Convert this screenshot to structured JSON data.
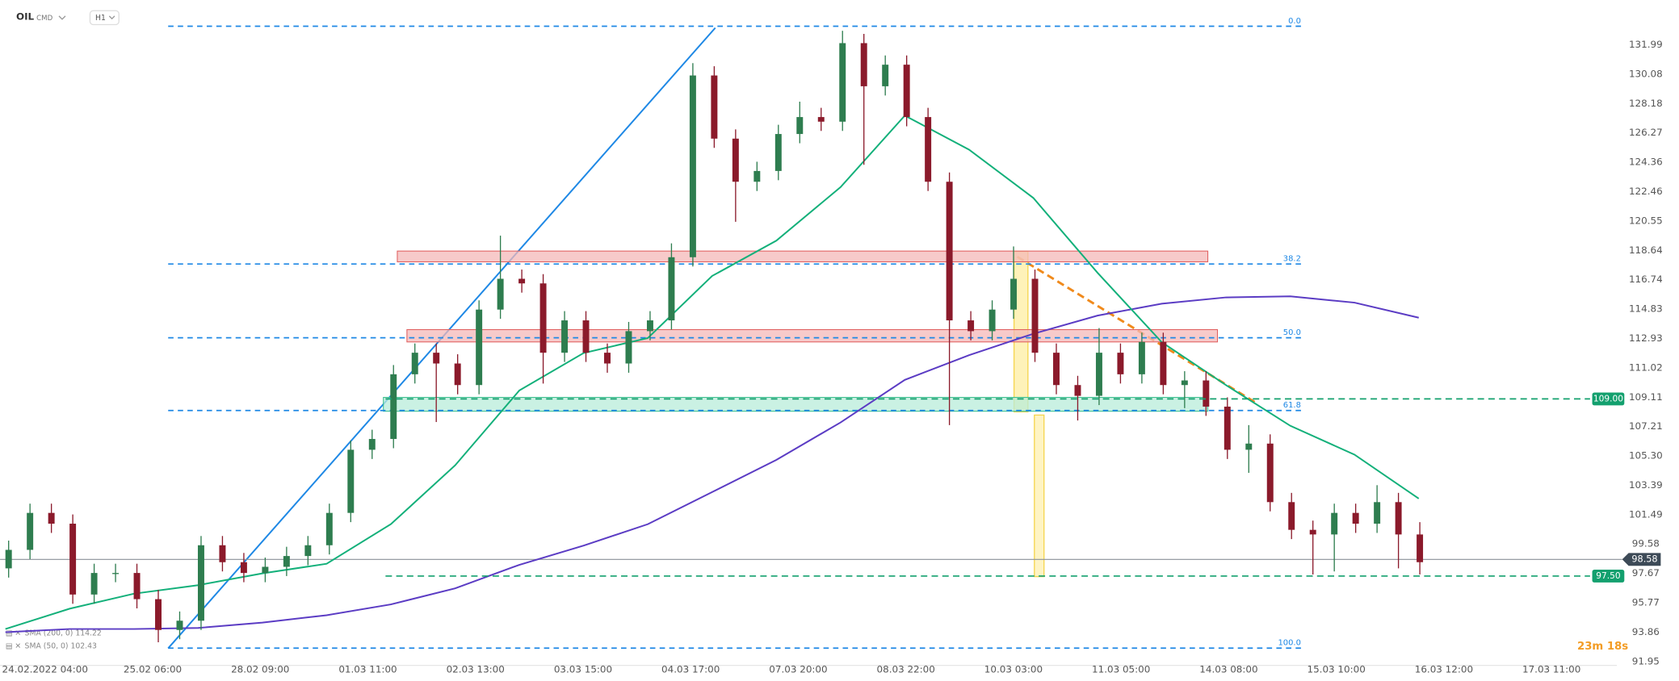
{
  "chart_data": {
    "type": "candlestick",
    "symbol": "OIL",
    "market": "CMD",
    "interval": "H1",
    "timer": "23m 18s",
    "ylim": [
      91.7,
      134.9
    ],
    "yticks": [
      131.99,
      130.08,
      128.18,
      126.27,
      124.36,
      122.46,
      120.55,
      118.64,
      116.74,
      114.83,
      112.93,
      111.02,
      109.11,
      107.21,
      {
        "value": 105.3,
        "label": "105.30"
      },
      103.39,
      101.49,
      99.58,
      97.67,
      95.77,
      93.86,
      91.95
    ],
    "x_labels": [
      "24.02.2022 04:00",
      "25.02 06:00",
      "28.02 09:00",
      "01.03 11:00",
      "02.03 13:00",
      "03.03 15:00",
      "04.03 17:00",
      "07.03 20:00",
      "08.03 22:00",
      "10.03 03:00",
      "11.03 05:00",
      "14.03 08:00",
      "15.03 10:00",
      "16.03 12:00",
      "17.03 11:00"
    ],
    "up_color": "#2e7d4f",
    "down_color": "#8b1a2b",
    "open": [
      98.0,
      99.2,
      101.6,
      100.9,
      96.3,
      97.7,
      97.7,
      96.0,
      94.0,
      94.6,
      99.5,
      98.4,
      97.7,
      98.1,
      98.8,
      99.5,
      101.6,
      105.7,
      106.4,
      110.6,
      112.0,
      111.3,
      109.9,
      114.8,
      116.8,
      116.5,
      112.0,
      114.1,
      112.0,
      111.3,
      113.4,
      114.1,
      118.2,
      130.0,
      125.9,
      123.1,
      123.8,
      126.2,
      127.3,
      127.0,
      132.1,
      129.3,
      130.7,
      127.3,
      123.1,
      114.1,
      113.4,
      114.8,
      116.8,
      112.0,
      109.9,
      109.2,
      112.0,
      110.6,
      112.7,
      109.9,
      110.2,
      108.5,
      105.7,
      106.1,
      102.3,
      100.5,
      100.2,
      101.6,
      100.9,
      102.3,
      100.2
    ],
    "high": [
      99.8,
      102.2,
      102.2,
      101.5,
      98.3,
      98.3,
      98.3,
      96.6,
      95.2,
      100.1,
      100.1,
      99.0,
      98.7,
      99.4,
      100.1,
      102.2,
      106.3,
      107.0,
      111.2,
      112.6,
      112.6,
      111.9,
      115.4,
      119.6,
      117.4,
      117.1,
      114.7,
      114.7,
      112.6,
      114.0,
      114.7,
      119.1,
      130.8,
      130.6,
      126.5,
      124.4,
      126.8,
      128.3,
      127.9,
      132.9,
      132.7,
      131.3,
      131.3,
      127.9,
      123.7,
      114.7,
      115.4,
      118.9,
      117.4,
      112.6,
      110.5,
      113.6,
      112.6,
      113.3,
      113.3,
      110.8,
      110.8,
      109.1,
      107.3,
      106.7,
      102.9,
      101.1,
      102.2,
      102.2,
      103.4,
      102.9,
      101.0
    ],
    "low": [
      97.4,
      98.6,
      100.3,
      95.7,
      95.7,
      97.1,
      95.4,
      93.2,
      93.4,
      94.0,
      97.8,
      97.1,
      97.1,
      97.5,
      98.2,
      98.9,
      101.0,
      105.1,
      105.8,
      110.0,
      107.5,
      109.3,
      109.3,
      114.2,
      115.9,
      110.0,
      111.4,
      111.4,
      110.7,
      110.7,
      112.8,
      113.5,
      117.6,
      125.3,
      120.5,
      122.5,
      123.2,
      125.6,
      126.4,
      126.4,
      124.2,
      128.7,
      126.7,
      122.5,
      107.3,
      112.8,
      112.8,
      114.2,
      111.4,
      109.3,
      107.6,
      108.6,
      110.0,
      110.0,
      109.3,
      108.4,
      107.9,
      105.1,
      104.2,
      101.7,
      99.9,
      97.6,
      97.8,
      100.3,
      100.3,
      98.0,
      97.6
    ],
    "close": [
      99.2,
      101.6,
      100.9,
      96.3,
      97.7,
      97.7,
      96.0,
      94.0,
      94.6,
      99.5,
      98.4,
      97.7,
      98.1,
      98.8,
      99.5,
      101.6,
      105.7,
      106.4,
      110.6,
      112.0,
      111.3,
      109.9,
      114.8,
      116.8,
      116.5,
      112.0,
      114.1,
      112.0,
      111.3,
      113.4,
      114.1,
      118.2,
      130.0,
      125.9,
      123.1,
      123.8,
      126.2,
      127.3,
      127.0,
      132.1,
      129.3,
      130.7,
      127.3,
      123.1,
      114.1,
      113.4,
      114.8,
      116.8,
      112.0,
      109.9,
      109.2,
      112.0,
      110.6,
      112.7,
      109.9,
      110.2,
      108.5,
      105.7,
      106.1,
      102.3,
      100.5,
      100.2,
      101.6,
      100.9,
      102.3,
      100.2,
      98.4
    ],
    "series": [
      {
        "name": "SMA (200, 0) 114.22",
        "color": "#5b3cc4",
        "values": [
          93.85,
          94.06,
          94.06,
          94.13,
          94.48,
          94.96,
          95.66,
          96.7,
          98.23,
          99.48,
          100.87,
          102.95,
          105.04,
          107.47,
          110.24,
          111.84,
          113.23,
          114.41,
          115.18,
          115.59,
          115.66,
          115.25,
          114.27
        ]
      },
      {
        "name": "SMA (50, 0) 102.43",
        "color": "#13b07a",
        "values": [
          94.06,
          95.38,
          96.35,
          96.91,
          97.67,
          98.3,
          100.87,
          104.69,
          109.55,
          111.98,
          112.95,
          116.98,
          119.27,
          122.75,
          127.4,
          125.18,
          122.05,
          117.19,
          112.68,
          109.9,
          107.26,
          105.38,
          102.53
        ]
      }
    ],
    "fib_labels": [
      "0.0",
      "38.2",
      "50.0",
      "61.8",
      "100.0"
    ],
    "fib_prices": [
      133.2,
      117.76,
      112.97,
      108.25,
      92.82
    ],
    "fib_color": "#1e88e5",
    "zones": [
      {
        "low": 117.9,
        "high": 118.6,
        "color": "#f4b8b8"
      },
      {
        "low": 112.7,
        "high": 113.5,
        "color": "#f4b8b8"
      },
      {
        "low": 108.2,
        "high": 109.1,
        "color": "#b8ecd9"
      }
    ],
    "levels": [
      {
        "value": 109.0,
        "label": "109.00",
        "color": "#13a06e"
      },
      {
        "value": 97.5,
        "label": "97.50",
        "color": "#13a06e"
      }
    ],
    "last_price": {
      "value": 98.58,
      "label": "98.58",
      "color": "#3d4a57"
    }
  }
}
